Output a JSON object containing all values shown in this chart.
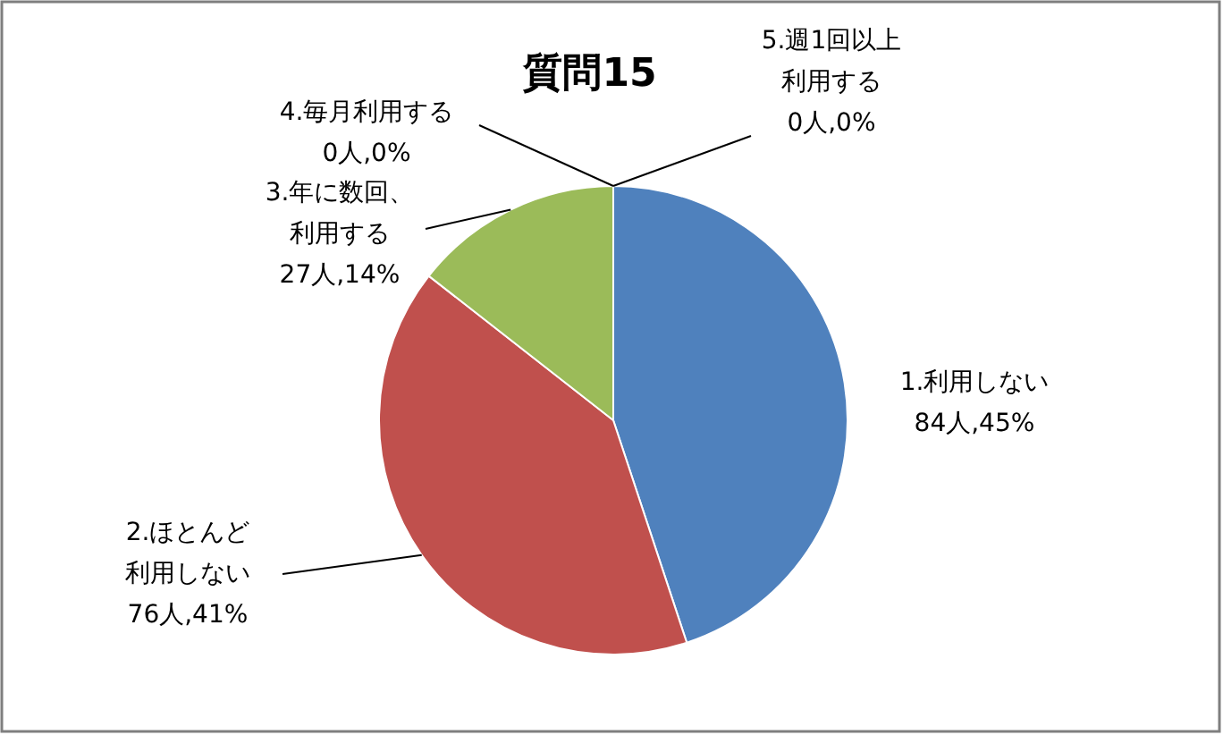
{
  "chart_data": {
    "type": "pie",
    "title": "質問15",
    "categories": [
      "1.利用しない",
      "2.ほとんど利用しない",
      "3.年に数回、利用する",
      "4.毎月利用する",
      "5.週1回以上利用する"
    ],
    "values": [
      84,
      76,
      27,
      0,
      0
    ],
    "colors": [
      "#4f81bd",
      "#c0504d",
      "#9bbb59",
      "#8064a2",
      "#4bacc6"
    ],
    "value_labels": [
      "84人,45%",
      "76人,41%",
      "27人,14%",
      "0人,0%",
      "0人,0%"
    ],
    "legend": false
  }
}
